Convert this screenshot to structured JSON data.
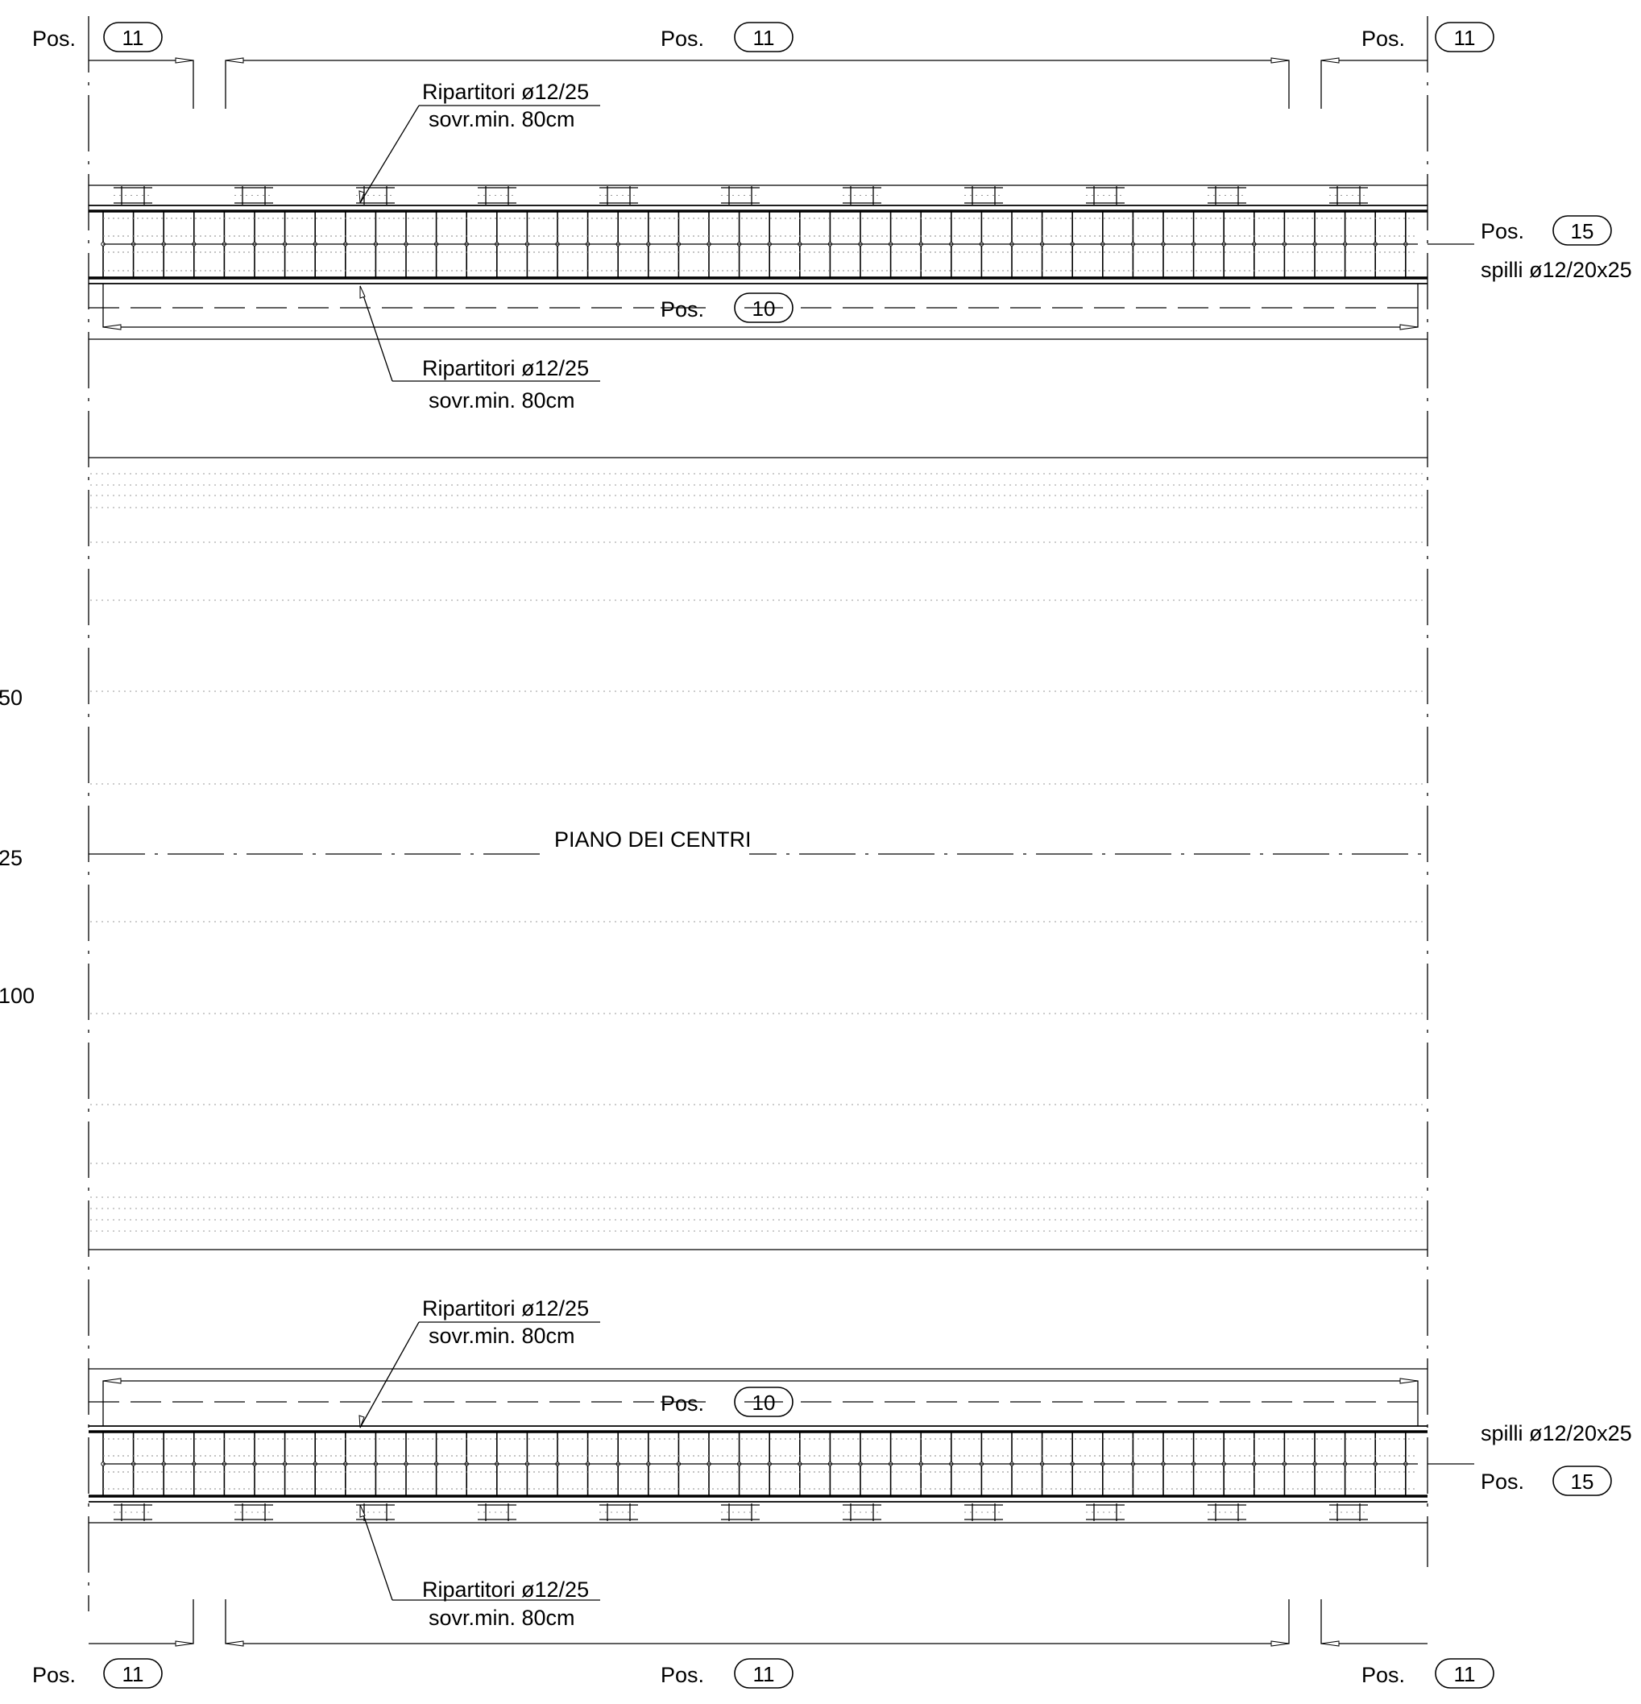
{
  "pos_label": "Pos.",
  "bars": {
    "top_left": {
      "pos": "11"
    },
    "top_center": {
      "pos": "11"
    },
    "top_right": {
      "pos": "11"
    },
    "bottom_left": {
      "pos": "11"
    },
    "bottom_center": {
      "pos": "11"
    },
    "bottom_right": {
      "pos": "11"
    },
    "top_main": {
      "pos": "10"
    },
    "bottom_main": {
      "pos": "10"
    },
    "top_pins": {
      "pos": "15"
    },
    "bottom_pins": {
      "pos": "15"
    }
  },
  "pins_text": "spilli ø12/20x25",
  "distributors": {
    "line1": "Ripartitori ø12/25",
    "line2": "sovr.min. 80cm"
  },
  "center_plane": "PIANO DEI CENTRI",
  "left_dimensions": [
    "50",
    "25",
    "100"
  ]
}
